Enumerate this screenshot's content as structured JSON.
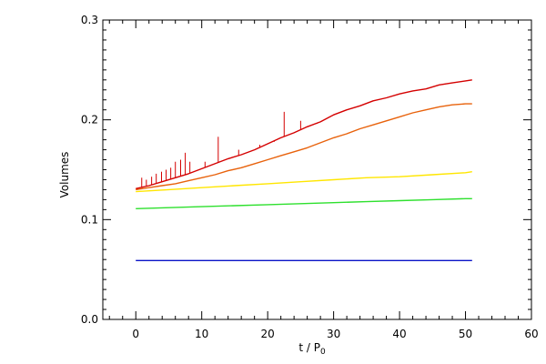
{
  "chart_data": {
    "type": "line",
    "xlabel": "t / P",
    "xlabel_sub": "0",
    "ylabel": "Volumes",
    "xlim": [
      -5,
      60
    ],
    "ylim": [
      0.0,
      0.3
    ],
    "x_ticks": [
      {
        "value": 0,
        "label": "0"
      },
      {
        "value": 10,
        "label": "10"
      },
      {
        "value": 20,
        "label": "20"
      },
      {
        "value": 30,
        "label": "30"
      },
      {
        "value": 40,
        "label": "40"
      },
      {
        "value": 50,
        "label": "50"
      },
      {
        "value": 60,
        "label": "60"
      }
    ],
    "y_ticks": [
      {
        "value": 0.0,
        "label": "0.0"
      },
      {
        "value": 0.1,
        "label": "0.1"
      },
      {
        "value": 0.2,
        "label": "0.2"
      },
      {
        "value": 0.3,
        "label": "0.3"
      }
    ],
    "grid": false,
    "series": [
      {
        "color": "#d40000",
        "x": [
          0,
          2,
          4,
          6,
          8,
          10,
          12,
          14,
          16,
          18,
          20,
          22,
          24,
          26,
          28,
          30,
          32,
          34,
          36,
          38,
          40,
          42,
          44,
          46,
          48,
          50,
          51
        ],
        "y": [
          0.131,
          0.134,
          0.138,
          0.142,
          0.146,
          0.151,
          0.156,
          0.161,
          0.165,
          0.17,
          0.176,
          0.182,
          0.187,
          0.193,
          0.198,
          0.205,
          0.21,
          0.214,
          0.219,
          0.222,
          0.226,
          0.229,
          0.231,
          0.235,
          0.237,
          0.239,
          0.24
        ],
        "spikes": [
          {
            "x": 0.9,
            "y": 0.142
          },
          {
            "x": 1.6,
            "y": 0.14
          },
          {
            "x": 2.4,
            "y": 0.143
          },
          {
            "x": 3.1,
            "y": 0.146
          },
          {
            "x": 3.9,
            "y": 0.148
          },
          {
            "x": 4.6,
            "y": 0.15
          },
          {
            "x": 5.3,
            "y": 0.152
          },
          {
            "x": 6.0,
            "y": 0.158
          },
          {
            "x": 6.8,
            "y": 0.16
          },
          {
            "x": 7.5,
            "y": 0.167
          },
          {
            "x": 8.2,
            "y": 0.158
          },
          {
            "x": 10.5,
            "y": 0.158
          },
          {
            "x": 12.5,
            "y": 0.183
          },
          {
            "x": 15.6,
            "y": 0.17
          },
          {
            "x": 18.8,
            "y": 0.175
          },
          {
            "x": 21.0,
            "y": 0.178
          },
          {
            "x": 22.5,
            "y": 0.208
          },
          {
            "x": 25.0,
            "y": 0.199
          },
          {
            "x": 27.5,
            "y": 0.196
          }
        ]
      },
      {
        "color": "#e8620c",
        "x": [
          0,
          2,
          4,
          6,
          8,
          10,
          12,
          14,
          16,
          18,
          20,
          22,
          24,
          26,
          28,
          30,
          32,
          34,
          36,
          38,
          40,
          42,
          44,
          46,
          48,
          50,
          51
        ],
        "y": [
          0.13,
          0.132,
          0.134,
          0.136,
          0.139,
          0.142,
          0.145,
          0.149,
          0.152,
          0.156,
          0.16,
          0.164,
          0.168,
          0.172,
          0.177,
          0.182,
          0.186,
          0.191,
          0.195,
          0.199,
          0.203,
          0.207,
          0.21,
          0.213,
          0.215,
          0.216,
          0.216
        ]
      },
      {
        "color": "#ffe600",
        "x": [
          0,
          5,
          10,
          15,
          20,
          25,
          30,
          35,
          40,
          45,
          50,
          51
        ],
        "y": [
          0.128,
          0.13,
          0.132,
          0.134,
          0.136,
          0.138,
          0.14,
          0.142,
          0.143,
          0.145,
          0.147,
          0.148
        ]
      },
      {
        "color": "#2ee02e",
        "x": [
          0,
          5,
          10,
          15,
          20,
          25,
          30,
          35,
          40,
          45,
          50,
          51
        ],
        "y": [
          0.111,
          0.112,
          0.113,
          0.114,
          0.115,
          0.116,
          0.117,
          0.118,
          0.119,
          0.12,
          0.121,
          0.121
        ]
      },
      {
        "color": "#0a14c8",
        "x": [
          0,
          10,
          20,
          30,
          40,
          51
        ],
        "y": [
          0.059,
          0.059,
          0.059,
          0.059,
          0.059,
          0.059
        ]
      }
    ]
  }
}
